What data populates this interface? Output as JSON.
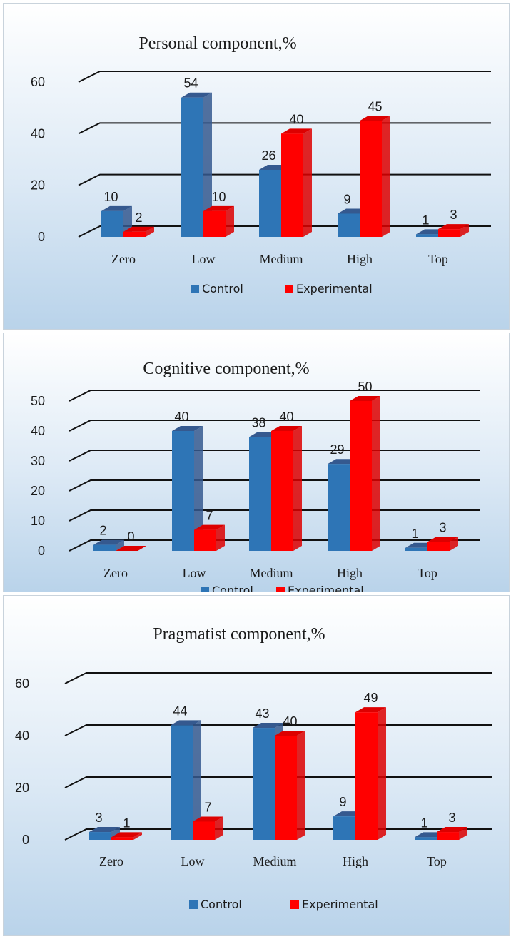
{
  "colors": {
    "control": "#2e75b6",
    "control_dark": "#35598f",
    "experimental": "#ff0000",
    "experimental_dark": "#dd0000"
  },
  "chart_data": [
    {
      "type": "bar",
      "title": "Personal component,%",
      "categories": [
        "Zero",
        "Low",
        "Medium",
        "High",
        "Top"
      ],
      "series": [
        {
          "name": "Control",
          "values": [
            10,
            54,
            26,
            9,
            1
          ]
        },
        {
          "name": "Experimental",
          "values": [
            2,
            10,
            40,
            45,
            3
          ]
        }
      ],
      "yticks": [
        "0",
        "20",
        "40",
        "60"
      ],
      "ylim": [
        0,
        60
      ],
      "grid": true,
      "legend": "bottom"
    },
    {
      "type": "bar",
      "title": "Cognitive component,%",
      "categories": [
        "Zero",
        "Low",
        "Medium",
        "High",
        "Top"
      ],
      "series": [
        {
          "name": "Control",
          "values": [
            2,
            40,
            38,
            29,
            1
          ]
        },
        {
          "name": "Experimental",
          "values": [
            0,
            7,
            40,
            50,
            3
          ]
        }
      ],
      "yticks": [
        "0",
        "10",
        "20",
        "30",
        "40",
        "50"
      ],
      "ylim": [
        0,
        50
      ],
      "grid": true,
      "legend": "bottom"
    },
    {
      "type": "bar",
      "title": "Pragmatist component,%",
      "categories": [
        "Zero",
        "Low",
        "Medium",
        "High",
        "Top"
      ],
      "series": [
        {
          "name": "Control",
          "values": [
            3,
            44,
            43,
            9,
            1
          ]
        },
        {
          "name": "Experimental",
          "values": [
            1,
            7,
            40,
            49,
            3
          ]
        }
      ],
      "yticks": [
        "0",
        "20",
        "40",
        "60"
      ],
      "ylim": [
        0,
        60
      ],
      "grid": true,
      "legend": "bottom"
    }
  ]
}
